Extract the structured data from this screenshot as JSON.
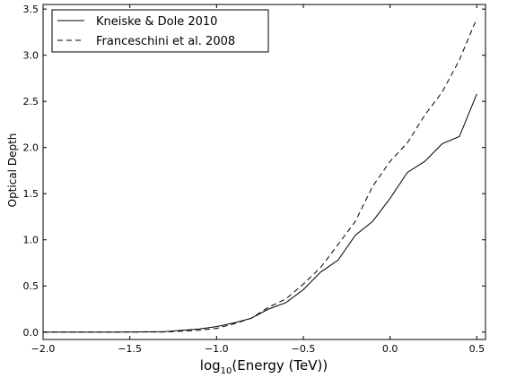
{
  "chart_data": {
    "type": "line",
    "xlabel": "log10(Energy (TeV))",
    "xlabel_base": "log",
    "xlabel_sub": "10",
    "xlabel_rest": "(Energy (TeV))",
    "ylabel": "Optical Depth",
    "xlim": [
      -2.0,
      0.55
    ],
    "ylim": [
      -0.08,
      3.55
    ],
    "xticks": [
      -2.0,
      -1.5,
      -1.0,
      -0.5,
      0.0,
      0.5
    ],
    "xtick_labels": [
      "−2.0",
      "−1.5",
      "−1.0",
      "−0.5",
      "0.0",
      "0.5"
    ],
    "yticks": [
      0.0,
      0.5,
      1.0,
      1.5,
      2.0,
      2.5,
      3.0,
      3.5
    ],
    "ytick_labels": [
      "0.0",
      "0.5",
      "1.0",
      "1.5",
      "2.0",
      "2.5",
      "3.0",
      "3.5"
    ],
    "grid": false,
    "legend_position": "top-left",
    "series": [
      {
        "name": "Kneiske & Dole 2010",
        "style": "solid",
        "color": "#000000",
        "x": [
          -2.0,
          -1.6,
          -1.3,
          -1.2,
          -1.1,
          -1.0,
          -0.9,
          -0.8,
          -0.7,
          -0.6,
          -0.5,
          -0.4,
          -0.3,
          -0.2,
          -0.1,
          0.0,
          0.1,
          0.2,
          0.3,
          0.4,
          0.5
        ],
        "y": [
          0.0,
          0.0,
          0.005,
          0.02,
          0.035,
          0.06,
          0.1,
          0.15,
          0.25,
          0.32,
          0.46,
          0.65,
          0.78,
          1.05,
          1.2,
          1.45,
          1.73,
          1.85,
          2.04,
          2.12,
          2.58
        ]
      },
      {
        "name": "Franceschini et al. 2008",
        "style": "dashed",
        "color": "#000000",
        "x": [
          -2.0,
          -1.6,
          -1.3,
          -1.2,
          -1.1,
          -1.0,
          -0.9,
          -0.8,
          -0.7,
          -0.6,
          -0.5,
          -0.4,
          -0.3,
          -0.2,
          -0.1,
          0.0,
          0.1,
          0.2,
          0.3,
          0.4,
          0.5
        ],
        "y": [
          0.0,
          0.0,
          0.002,
          0.01,
          0.02,
          0.04,
          0.09,
          0.15,
          0.27,
          0.36,
          0.52,
          0.7,
          0.95,
          1.2,
          1.58,
          1.85,
          2.05,
          2.35,
          2.6,
          2.95,
          3.4
        ]
      }
    ]
  }
}
